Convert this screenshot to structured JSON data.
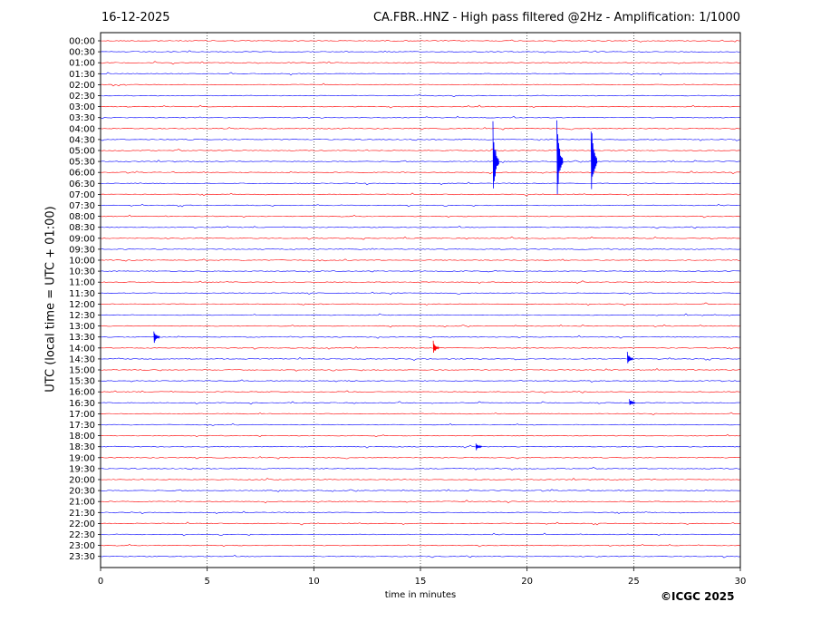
{
  "header": {
    "date": "16-12-2025",
    "title": "CA.FBR..HNZ - High pass filtered @2Hz - Amplification: 1/1000"
  },
  "copyright": "©ICGC 2025",
  "chart_data": {
    "type": "line",
    "xlabel": "time in minutes",
    "ylabel": "UTC (local time = UTC + 01:00)",
    "xlim": [
      0,
      30
    ],
    "x_ticks": [
      0,
      5,
      10,
      15,
      20,
      25,
      30
    ],
    "grid": "vertical dotted lines at 5-minute intervals",
    "y_ticks": [
      "00:00",
      "00:30",
      "01:00",
      "01:30",
      "02:00",
      "02:30",
      "03:00",
      "03:30",
      "04:00",
      "04:30",
      "05:00",
      "05:30",
      "06:00",
      "06:30",
      "07:00",
      "07:30",
      "08:00",
      "08:30",
      "09:00",
      "09:30",
      "10:00",
      "10:30",
      "11:00",
      "11:30",
      "12:00",
      "12:30",
      "13:00",
      "13:30",
      "14:00",
      "14:30",
      "15:00",
      "15:30",
      "16:00",
      "16:30",
      "17:00",
      "17:30",
      "18:00",
      "18:30",
      "19:00",
      "19:30",
      "20:00",
      "20:30",
      "21:00",
      "21:30",
      "22:00",
      "22:30",
      "23:00",
      "23:30"
    ],
    "series_colors": {
      "even_row": "#ff0000",
      "odd_row": "#0000ff"
    },
    "events": [
      {
        "row": "05:30",
        "x": 18.4,
        "amplitude": "large"
      },
      {
        "row": "05:30",
        "x": 21.4,
        "amplitude": "large"
      },
      {
        "row": "05:30",
        "x": 23.0,
        "amplitude": "large"
      },
      {
        "row": "13:30",
        "x": 2.5,
        "amplitude": "medium"
      },
      {
        "row": "14:00",
        "x": 15.6,
        "amplitude": "medium"
      },
      {
        "row": "14:30",
        "x": 24.7,
        "amplitude": "medium"
      },
      {
        "row": "16:30",
        "x": 24.8,
        "amplitude": "small"
      },
      {
        "row": "18:30",
        "x": 17.6,
        "amplitude": "small"
      }
    ]
  }
}
